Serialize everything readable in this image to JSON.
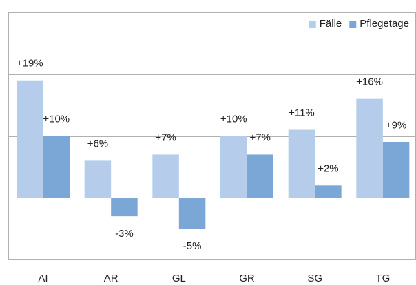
{
  "chart_data": {
    "type": "bar",
    "categories": [
      "AI",
      "AR",
      "GL",
      "GR",
      "SG",
      "TG"
    ],
    "series": [
      {
        "name": "Fälle",
        "color": "#b5cdeb",
        "values": [
          19,
          6,
          7,
          10,
          11,
          16
        ],
        "value_labels": [
          "+19%",
          "+6%",
          "+7%",
          "+10%",
          "+11%",
          "+16%"
        ]
      },
      {
        "name": "Pflegetage",
        "color": "#7ba7d7",
        "values": [
          10,
          -3,
          -5,
          7,
          2,
          9
        ],
        "value_labels": [
          "+10%",
          "-3%",
          "-5%",
          "+7%",
          "+2%",
          "+9%"
        ]
      }
    ],
    "ylim": [
      -10,
      30
    ],
    "yticks": [
      -10,
      0,
      10,
      20,
      30
    ],
    "grid": true,
    "legend": "top-right"
  }
}
